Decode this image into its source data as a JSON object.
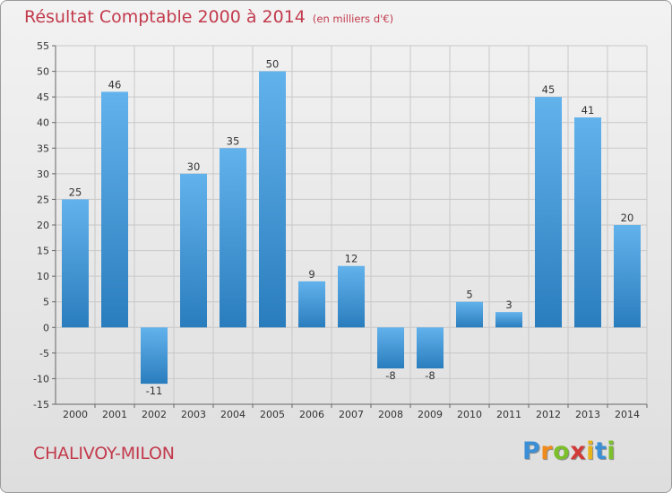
{
  "title": "Résultat Comptable 2000 à 2014",
  "subtitle": "(en milliers d'€)",
  "place_name": "CHALIVOY-MILON",
  "logo": {
    "letters": [
      "P",
      "r",
      "o",
      "x",
      "i",
      "t",
      "i"
    ],
    "colors": [
      "#3a8fd6",
      "#f08a1a",
      "#7bbf2a",
      "#d23a3a",
      "#e9b41a",
      "#3a8fd6",
      "#7bbf2a"
    ]
  },
  "colors": {
    "title": "#c23a4c",
    "bar_light": "#62b2ec",
    "bar_dark": "#2a7dbd",
    "grid": "#c8c8c8",
    "axis_text": "#333333"
  },
  "chart_data": {
    "type": "bar",
    "title": "Résultat Comptable 2000 à 2014",
    "subtitle": "(en milliers d'€)",
    "xlabel": "",
    "ylabel": "",
    "categories": [
      "2000",
      "2001",
      "2002",
      "2003",
      "2004",
      "2005",
      "2006",
      "2007",
      "2008",
      "2009",
      "2010",
      "2011",
      "2012",
      "2013",
      "2014"
    ],
    "values": [
      25,
      46,
      -11,
      30,
      35,
      50,
      9,
      12,
      -8,
      -8,
      5,
      3,
      45,
      41,
      20
    ],
    "labels": [
      "25",
      "46",
      "-11",
      "30",
      "35",
      "50",
      "9",
      "12",
      "-8",
      "-8",
      "5",
      "3",
      "45",
      "41",
      "20"
    ],
    "ylim": [
      -15,
      55
    ],
    "yticks": [
      -15,
      -10,
      -5,
      0,
      5,
      10,
      15,
      20,
      25,
      30,
      35,
      40,
      45,
      50,
      55
    ],
    "grid": true,
    "legend": "none"
  }
}
